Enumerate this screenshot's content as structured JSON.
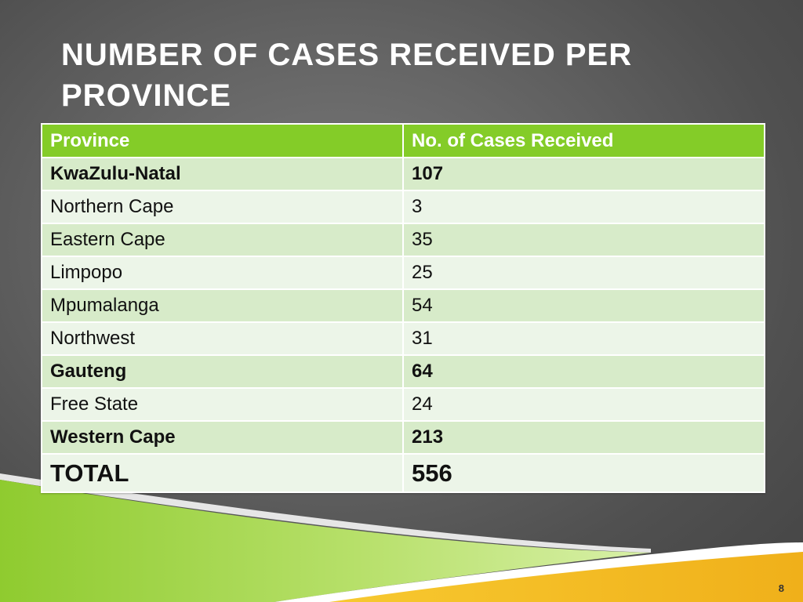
{
  "slide": {
    "title": "NUMBER OF CASES RECEIVED PER PROVINCE",
    "page_number": "8"
  },
  "table": {
    "headers": [
      "Province",
      "No. of Cases Received"
    ],
    "rows": [
      {
        "province": "KwaZulu-Natal",
        "cases": "107",
        "bold": true
      },
      {
        "province": "Northern Cape",
        "cases": "3",
        "bold": false
      },
      {
        "province": "Eastern Cape",
        "cases": "35",
        "bold": false
      },
      {
        "province": "Limpopo",
        "cases": "25",
        "bold": false
      },
      {
        "province": "Mpumalanga",
        "cases": "54",
        "bold": false
      },
      {
        "province": "Northwest",
        "cases": "31",
        "bold": false
      },
      {
        "province": "Gauteng",
        "cases": "64",
        "bold": true
      },
      {
        "province": "Free State",
        "cases": "24",
        "bold": false
      },
      {
        "province": "Western Cape",
        "cases": "213",
        "bold": true
      }
    ],
    "total": {
      "label": "TOTAL",
      "value": "556"
    }
  },
  "colors": {
    "header_green": "#84cc28",
    "row_dark": "#d7ebc9",
    "row_light": "#ecf5e8",
    "accent_yellow": "#f3b81c",
    "accent_lime": "#9ed23a"
  }
}
